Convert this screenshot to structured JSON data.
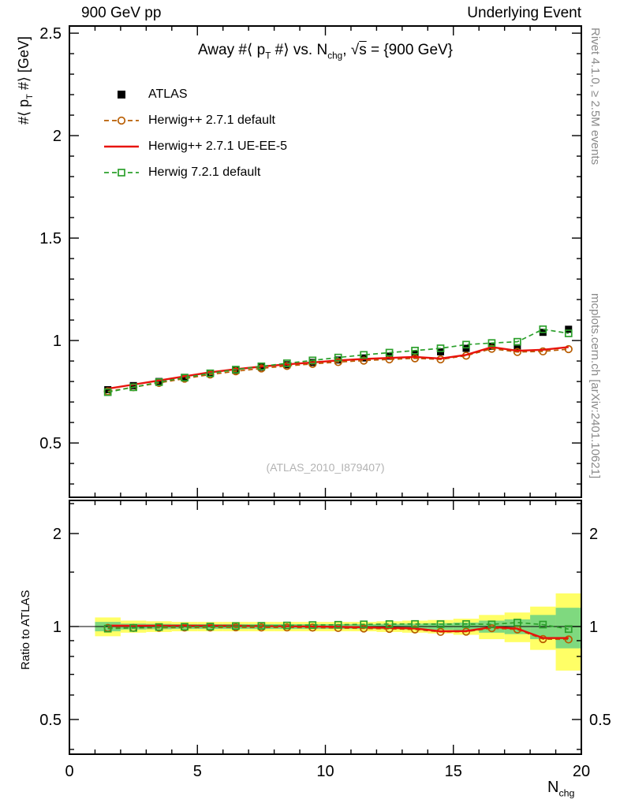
{
  "header": {
    "left": "900 GeV pp",
    "right": "Underlying Event"
  },
  "title": {
    "parts": [
      {
        "t": "Away #⟨ p"
      },
      {
        "t": "T",
        "style": "sub"
      },
      {
        "t": " #⟩ vs. N"
      },
      {
        "t": "chg",
        "style": "sub"
      },
      {
        "t": ", "
      },
      {
        "t": "√"
      },
      {
        "t": "s",
        "style": "overline"
      },
      {
        "t": " = {900 GeV}"
      }
    ]
  },
  "y_axis_label": {
    "parts": [
      {
        "t": "#⟨ p"
      },
      {
        "t": "T",
        "style": "sub"
      },
      {
        "t": " #⟩ [GeV]"
      }
    ]
  },
  "x_axis_label": {
    "parts": [
      {
        "t": "N"
      },
      {
        "t": "chg",
        "style": "sub"
      }
    ]
  },
  "ratio_label": "Ratio to ATLAS",
  "watermark": "(ATLAS_2010_I879407)",
  "side_notes": {
    "top": "Rivet 4.1.0, ≥ 2.5M events",
    "bottom": "mcplots.cern.ch [arXiv:2401.10621]"
  },
  "legend": [
    {
      "label": "ATLAS",
      "marker": "filled-square",
      "color": "#000000",
      "line": "none"
    },
    {
      "label": "Herwig++ 2.7.1 default",
      "marker": "open-circle",
      "color": "#b85c00",
      "line": "dashed"
    },
    {
      "label": "Herwig++ 2.7.1 UE-EE-5",
      "marker": "none",
      "color": "#e8130c",
      "line": "solid"
    },
    {
      "label": "Herwig 7.2.1 default",
      "marker": "open-square",
      "color": "#2ca02c",
      "line": "dashed"
    }
  ],
  "chart_data": {
    "type": "line",
    "title": "Away #< pT #> vs. Nchg, sqrt(s) = {900 GeV}",
    "xlabel": "Nchg",
    "ylabel": "#< pT #> [GeV]",
    "x": [
      1.5,
      2.5,
      3.5,
      4.5,
      5.5,
      6.5,
      7.5,
      8.5,
      9.5,
      10.5,
      11.5,
      12.5,
      13.5,
      14.5,
      15.5,
      16.5,
      17.5,
      18.5,
      19.5
    ],
    "series": [
      {
        "name": "ATLAS",
        "color": "#000000",
        "marker": "filled-square",
        "line": "none",
        "err": 0.015,
        "values": [
          0.76,
          0.78,
          0.8,
          0.82,
          0.84,
          0.855,
          0.87,
          0.882,
          0.893,
          0.905,
          0.915,
          0.924,
          0.933,
          0.945,
          0.962,
          0.972,
          0.965,
          1.04,
          1.055
        ]
      },
      {
        "name": "Herwig++ 2.7.1 default",
        "color": "#b85c00",
        "marker": "open-circle",
        "line": "dashed",
        "values": [
          0.752,
          0.772,
          0.793,
          0.814,
          0.834,
          0.85,
          0.864,
          0.876,
          0.886,
          0.895,
          0.902,
          0.908,
          0.913,
          0.908,
          0.926,
          0.96,
          0.944,
          0.947,
          0.958
        ]
      },
      {
        "name": "Herwig++ 2.7.1 UE-EE-5",
        "color": "#e8130c",
        "marker": "none",
        "line": "solid",
        "values": [
          0.765,
          0.785,
          0.805,
          0.825,
          0.845,
          0.86,
          0.873,
          0.884,
          0.893,
          0.903,
          0.91,
          0.915,
          0.92,
          0.912,
          0.93,
          0.968,
          0.95,
          0.955,
          0.968
        ]
      },
      {
        "name": "Herwig 7.2.1 default",
        "color": "#2ca02c",
        "marker": "open-square",
        "line": "dashed",
        "values": [
          0.748,
          0.772,
          0.797,
          0.819,
          0.84,
          0.858,
          0.874,
          0.889,
          0.903,
          0.917,
          0.93,
          0.941,
          0.951,
          0.962,
          0.98,
          0.988,
          0.994,
          1.055,
          1.035
        ]
      }
    ],
    "x_axis": {
      "xlim": [
        0,
        20
      ],
      "xticks": [
        0,
        5,
        10,
        15,
        20
      ],
      "xtick_labels": [
        "0",
        "5",
        "10",
        "15",
        "20"
      ],
      "minor_step": 1
    },
    "main_axis": {
      "scale": "linear",
      "ylim": [
        0.235,
        2.535
      ],
      "yticks": [
        0.5,
        1,
        1.5,
        2,
        2.5
      ],
      "ytick_labels": [
        "0.5",
        "1",
        "1.5",
        "2",
        "2.5"
      ],
      "minor_step": 0.1
    },
    "ratio_axis": {
      "scale": "log",
      "ylim": [
        0.386,
        2.56
      ],
      "yticks": [
        0.5,
        1,
        2
      ],
      "ytick_labels": [
        "0.5",
        "1",
        "2"
      ],
      "minor_ticks": [
        0.4,
        0.6,
        0.7,
        0.8,
        0.9,
        1.5,
        2.5
      ]
    },
    "ratio_reference": 1,
    "bin_width": 1,
    "ratio_bands": {
      "yellow": {
        "color": "#ffff66",
        "half_widths": [
          0.07,
          0.045,
          0.04,
          0.035,
          0.035,
          0.035,
          0.035,
          0.035,
          0.035,
          0.035,
          0.035,
          0.04,
          0.045,
          0.05,
          0.06,
          0.09,
          0.11,
          0.16,
          0.28
        ]
      },
      "green": {
        "color": "#7fd97f",
        "half_widths": [
          0.035,
          0.022,
          0.02,
          0.018,
          0.018,
          0.018,
          0.018,
          0.018,
          0.018,
          0.018,
          0.018,
          0.02,
          0.022,
          0.025,
          0.03,
          0.045,
          0.055,
          0.09,
          0.15
        ]
      }
    },
    "legend_position": "top-left",
    "grid": false
  }
}
